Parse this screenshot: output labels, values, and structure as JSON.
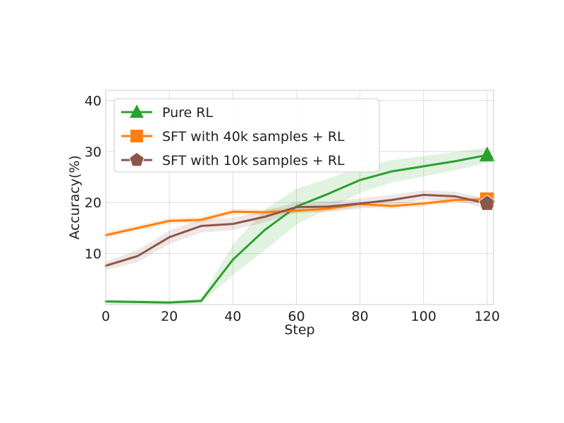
{
  "chart_data": {
    "type": "line",
    "title": "",
    "xlabel": "Step",
    "ylabel": "Accuracy(%)",
    "xlim": [
      0,
      122
    ],
    "ylim": [
      0,
      42
    ],
    "xticks": [
      0,
      20,
      40,
      60,
      80,
      100,
      120
    ],
    "yticks": [
      10,
      20,
      30,
      40
    ],
    "grid": true,
    "legend_position": "top-left",
    "series": [
      {
        "name": "Pure RL",
        "color": "#2ca02c",
        "marker": "triangle",
        "x": [
          0,
          10,
          20,
          30,
          40,
          50,
          60,
          70,
          80,
          90,
          100,
          110,
          120
        ],
        "y": [
          0.6,
          0.5,
          0.4,
          0.7,
          8.8,
          14.6,
          19.2,
          21.7,
          24.4,
          26.1,
          27.1,
          28.1,
          29.3
        ],
        "band": [
          0.4,
          0.4,
          0.4,
          0.5,
          3.0,
          4.0,
          3.5,
          3.0,
          2.5,
          2.2,
          2.0,
          1.8,
          1.5
        ]
      },
      {
        "name": "SFT with 40k samples + RL",
        "color": "#ff7f0e",
        "marker": "square",
        "x": [
          0,
          10,
          20,
          30,
          40,
          50,
          60,
          70,
          80,
          90,
          100,
          110,
          120
        ],
        "y": [
          13.6,
          15.0,
          16.4,
          16.6,
          18.2,
          18.1,
          18.4,
          18.8,
          19.7,
          19.3,
          19.8,
          20.5,
          20.6
        ],
        "band": [
          0.6,
          0.6,
          0.6,
          0.6,
          0.6,
          0.6,
          0.6,
          0.6,
          0.6,
          0.6,
          0.6,
          0.6,
          0.6
        ]
      },
      {
        "name": "SFT with 10k samples + RL",
        "color": "#8c564b",
        "marker": "pentagon",
        "x": [
          0,
          10,
          20,
          30,
          40,
          50,
          60,
          70,
          80,
          90,
          100,
          110,
          120
        ],
        "y": [
          7.6,
          9.5,
          13.2,
          15.4,
          15.8,
          17.2,
          19.1,
          19.2,
          19.8,
          20.5,
          21.5,
          21.2,
          19.8
        ],
        "band": [
          0.8,
          1.2,
          1.3,
          1.3,
          1.2,
          1.1,
          1.0,
          1.0,
          1.0,
          1.0,
          0.9,
          0.9,
          0.9
        ]
      }
    ]
  }
}
